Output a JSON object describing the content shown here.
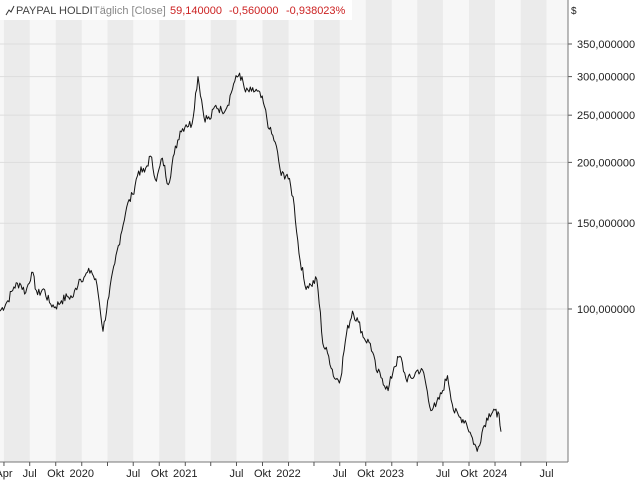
{
  "header": {
    "instrument": "PAYPAL HOLDI",
    "interval": "Täglich [Close]",
    "last": "59,140000",
    "change": "-0,560000",
    "change_pct": "-0,938023%",
    "currency": "$"
  },
  "colors": {
    "header_label": "#444444",
    "header_interval": "#888888",
    "header_values": "#cc2222",
    "line": "#111111",
    "grid": "#dddddd",
    "band": "#ebebeb",
    "plot_bg": "#f7f7f7"
  },
  "chart_data": {
    "type": "line",
    "title": "",
    "xlabel": "",
    "ylabel": "",
    "scale": "log",
    "grid": true,
    "x_range": [
      "2019-03-18",
      "2024-09-15"
    ],
    "ylim": [
      40,
      355
    ],
    "y_ticks": [
      {
        "value": 350,
        "label": "350,000000"
      },
      {
        "value": 300,
        "label": "300,000000"
      },
      {
        "value": 250,
        "label": "250,000000"
      },
      {
        "value": 200,
        "label": "200,000000"
      },
      {
        "value": 150,
        "label": "150,000000"
      },
      {
        "value": 100,
        "label": "100,000000"
      }
    ],
    "x_ticks": [
      {
        "date": "2019-04-01",
        "label": "Apr"
      },
      {
        "date": "2019-07-01",
        "label": "Jul"
      },
      {
        "date": "2019-10-01",
        "label": "Okt"
      },
      {
        "date": "2020-01-01",
        "label": "2020"
      },
      {
        "date": "2020-04-01",
        "label": "Apr"
      },
      {
        "date": "2020-07-01",
        "label": "Jul"
      },
      {
        "date": "2020-10-01",
        "label": "Okt"
      },
      {
        "date": "2021-01-01",
        "label": "2021"
      },
      {
        "date": "2021-04-01",
        "label": "Apr"
      },
      {
        "date": "2021-07-01",
        "label": "Jul"
      },
      {
        "date": "2021-10-01",
        "label": "Okt"
      },
      {
        "date": "2022-01-01",
        "label": "2022"
      },
      {
        "date": "2022-04-01",
        "label": "Apr"
      },
      {
        "date": "2022-07-01",
        "label": "Jul"
      },
      {
        "date": "2022-10-01",
        "label": "Okt"
      },
      {
        "date": "2023-01-01",
        "label": "2023"
      },
      {
        "date": "2023-04-01",
        "label": "Apr"
      },
      {
        "date": "2023-07-01",
        "label": "Jul"
      },
      {
        "date": "2023-10-01",
        "label": "Okt"
      },
      {
        "date": "2024-01-01",
        "label": "2024"
      },
      {
        "date": "2024-04-01",
        "label": "Apr"
      },
      {
        "date": "2024-07-01",
        "label": "Jul"
      }
    ],
    "series": [
      {
        "color": "#111111",
        "points": [
          [
            "2019-03-18",
            99
          ],
          [
            "2019-04-15",
            104
          ],
          [
            "2019-05-06",
            111
          ],
          [
            "2019-05-27",
            113
          ],
          [
            "2019-06-17",
            108
          ],
          [
            "2019-07-08",
            119
          ],
          [
            "2019-07-29",
            107
          ],
          [
            "2019-08-19",
            110
          ],
          [
            "2019-09-09",
            103
          ],
          [
            "2019-09-30",
            101
          ],
          [
            "2019-10-21",
            104
          ],
          [
            "2019-11-11",
            106
          ],
          [
            "2019-12-02",
            106
          ],
          [
            "2019-12-23",
            115
          ],
          [
            "2020-01-13",
            117
          ],
          [
            "2020-02-03",
            120
          ],
          [
            "2020-02-24",
            112
          ],
          [
            "2020-03-16",
            90
          ],
          [
            "2020-04-06",
            106
          ],
          [
            "2020-04-27",
            124
          ],
          [
            "2020-05-18",
            142
          ],
          [
            "2020-06-08",
            162
          ],
          [
            "2020-06-29",
            172
          ],
          [
            "2020-07-20",
            192
          ],
          [
            "2020-08-10",
            191
          ],
          [
            "2020-08-31",
            206
          ],
          [
            "2020-09-21",
            183
          ],
          [
            "2020-10-12",
            204
          ],
          [
            "2020-11-02",
            180
          ],
          [
            "2020-11-23",
            208
          ],
          [
            "2020-12-14",
            232
          ],
          [
            "2021-01-04",
            239
          ],
          [
            "2021-01-25",
            240
          ],
          [
            "2021-02-15",
            300
          ],
          [
            "2021-03-08",
            248
          ],
          [
            "2021-03-29",
            245
          ],
          [
            "2021-04-19",
            262
          ],
          [
            "2021-05-10",
            255
          ],
          [
            "2021-05-31",
            262
          ],
          [
            "2021-06-21",
            290
          ],
          [
            "2021-07-12",
            305
          ],
          [
            "2021-08-02",
            279
          ],
          [
            "2021-08-23",
            280
          ],
          [
            "2021-09-13",
            280
          ],
          [
            "2021-10-04",
            265
          ],
          [
            "2021-10-25",
            234
          ],
          [
            "2021-11-15",
            220
          ],
          [
            "2021-12-06",
            188
          ],
          [
            "2021-12-27",
            189
          ],
          [
            "2022-01-17",
            170
          ],
          [
            "2022-02-07",
            130
          ],
          [
            "2022-02-28",
            112
          ],
          [
            "2022-03-21",
            112
          ],
          [
            "2022-04-11",
            115
          ],
          [
            "2022-05-02",
            85
          ],
          [
            "2022-05-23",
            80
          ],
          [
            "2022-06-13",
            72
          ],
          [
            "2022-07-04",
            72
          ],
          [
            "2022-07-25",
            89
          ],
          [
            "2022-08-15",
            99
          ],
          [
            "2022-09-05",
            94
          ],
          [
            "2022-09-26",
            87
          ],
          [
            "2022-10-17",
            85
          ],
          [
            "2022-11-07",
            75
          ],
          [
            "2022-11-28",
            72
          ],
          [
            "2022-12-19",
            68
          ],
          [
            "2023-01-09",
            76
          ],
          [
            "2023-01-30",
            80
          ],
          [
            "2023-02-20",
            72
          ],
          [
            "2023-03-13",
            72
          ],
          [
            "2023-04-03",
            75
          ],
          [
            "2023-04-24",
            74
          ],
          [
            "2023-05-15",
            63
          ],
          [
            "2023-06-05",
            63
          ],
          [
            "2023-06-26",
            67
          ],
          [
            "2023-07-17",
            73
          ],
          [
            "2023-08-07",
            62
          ],
          [
            "2023-08-28",
            60
          ],
          [
            "2023-09-18",
            59
          ],
          [
            "2023-10-09",
            55
          ],
          [
            "2023-10-30",
            51
          ],
          [
            "2023-11-20",
            57
          ],
          [
            "2023-12-11",
            61
          ],
          [
            "2024-01-01",
            62
          ],
          [
            "2024-01-08",
            60
          ],
          [
            "2024-01-15",
            61
          ],
          [
            "2024-01-22",
            56
          ]
        ]
      }
    ]
  }
}
